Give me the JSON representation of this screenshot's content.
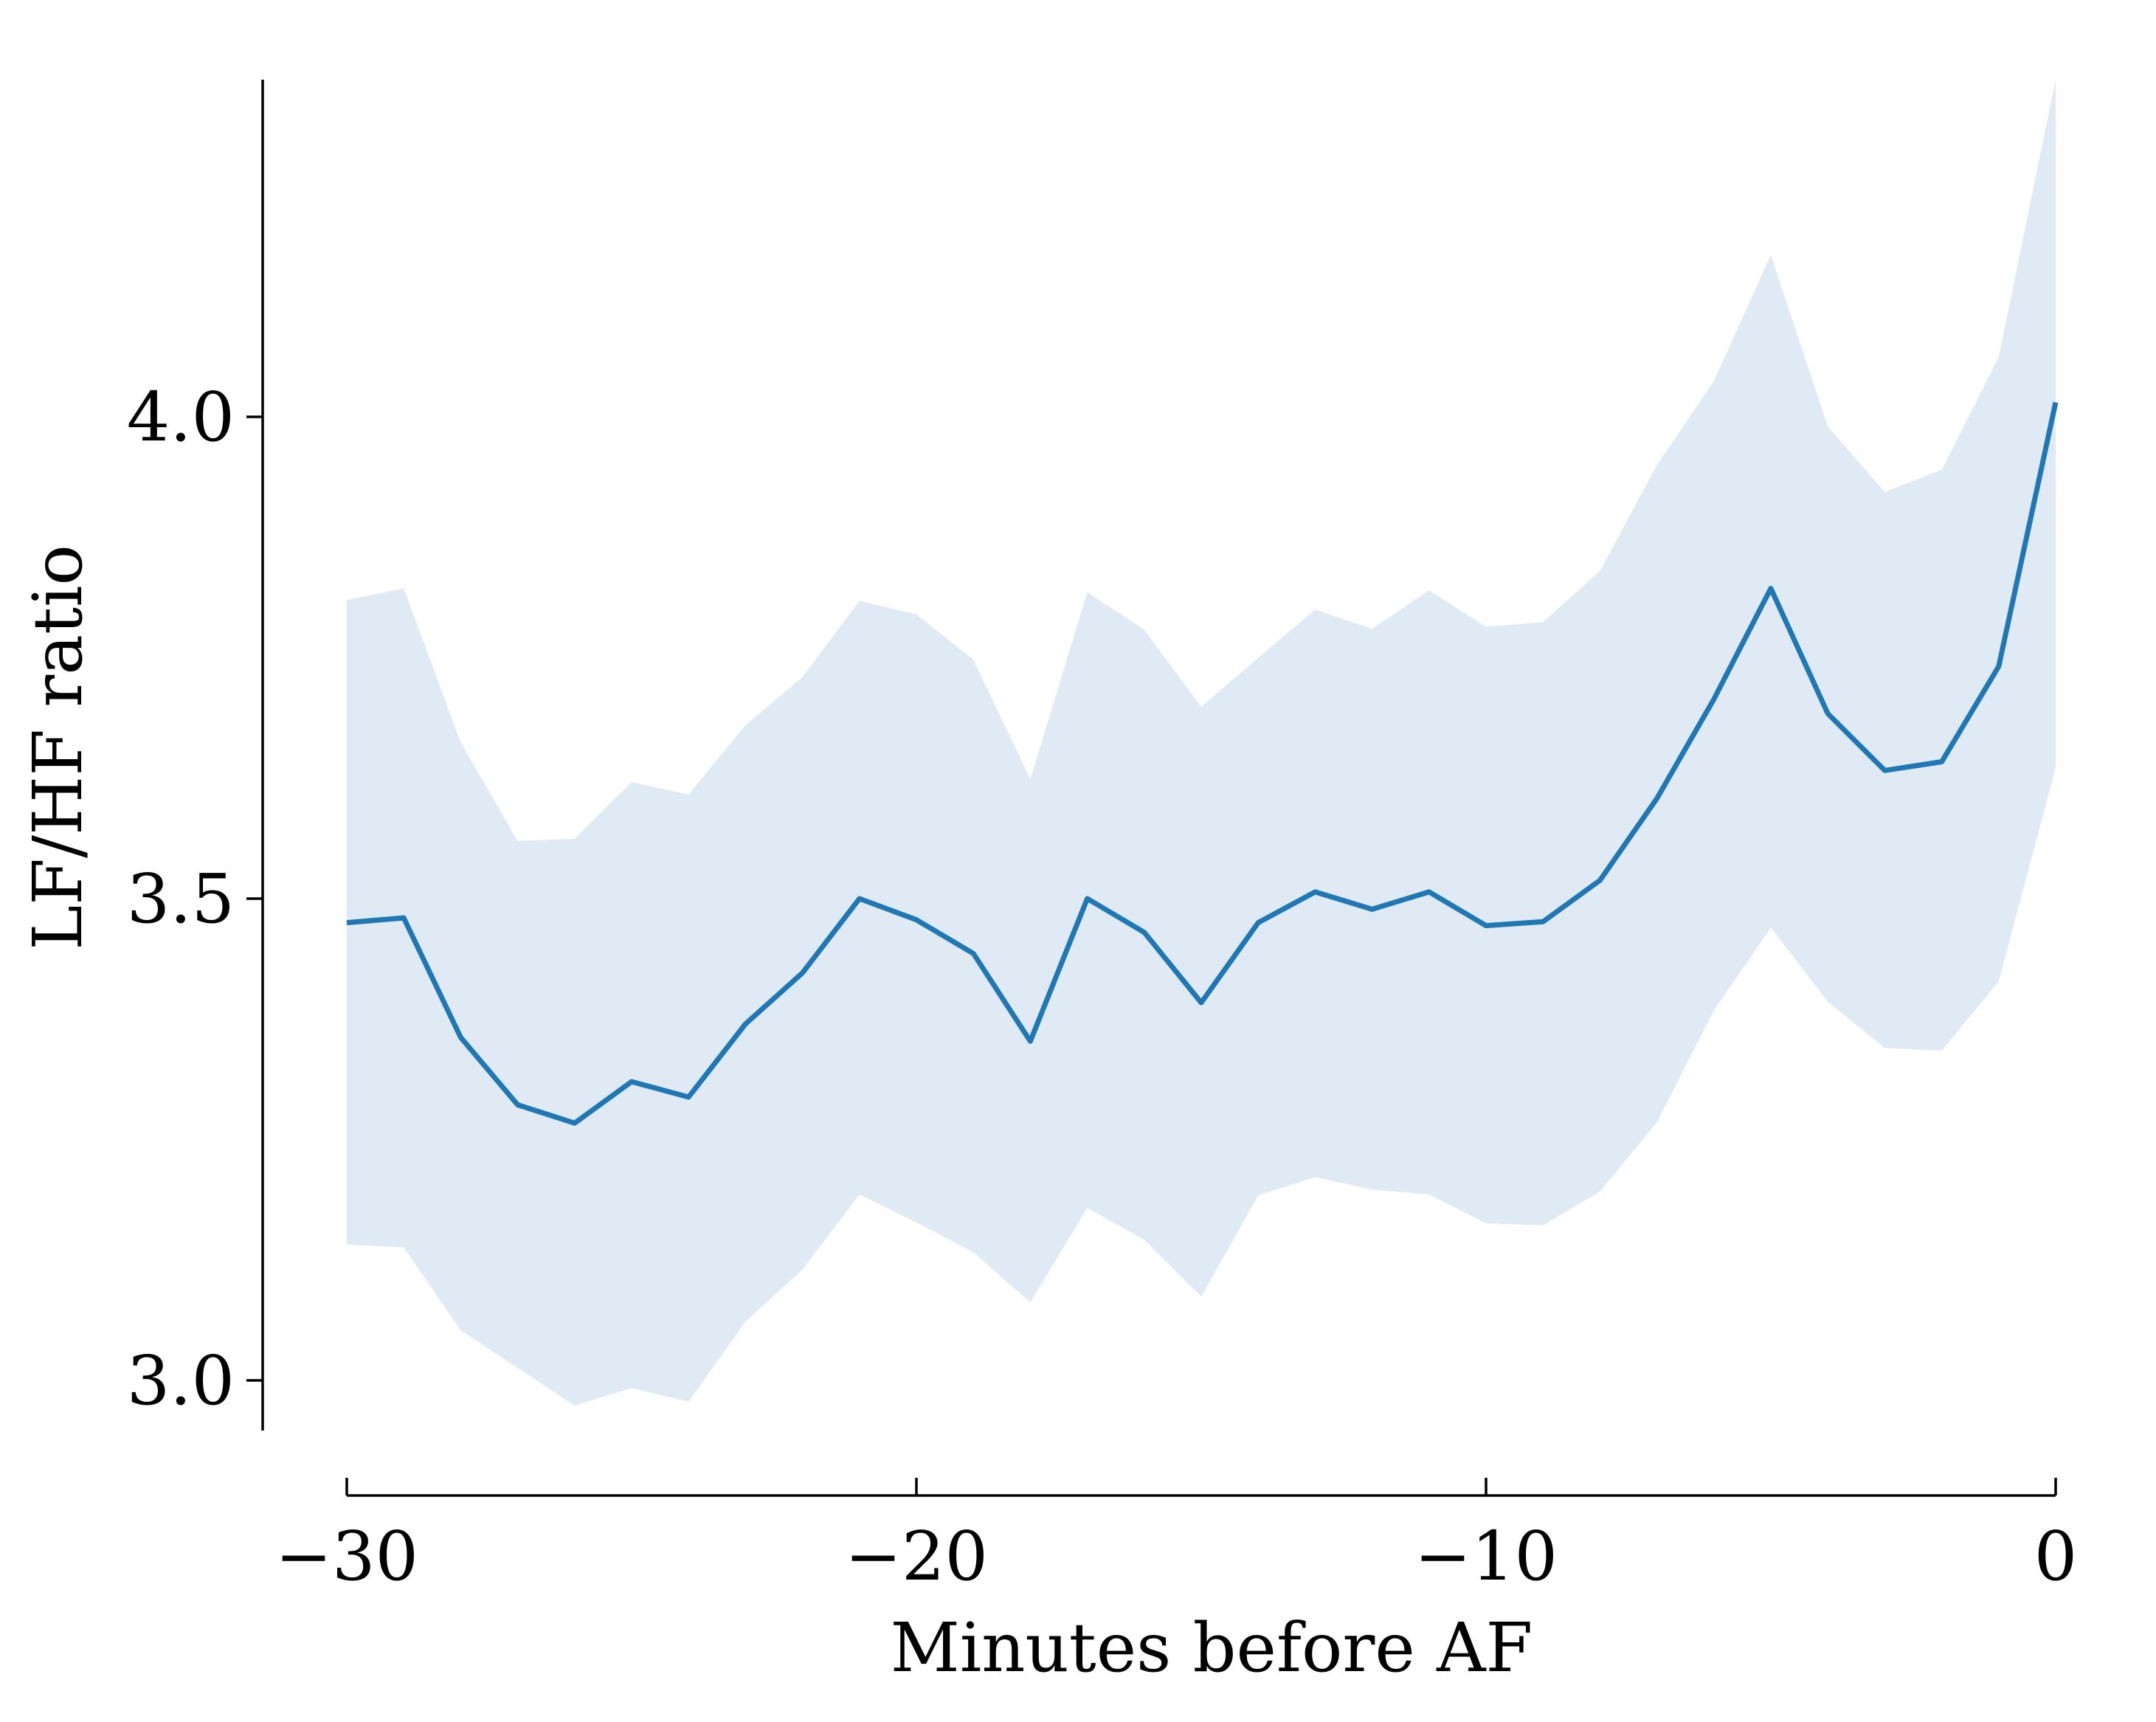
{
  "chart_data": {
    "type": "line",
    "title": "",
    "xlabel": "Minutes before AF",
    "ylabel": "LF/HF ratio",
    "xlim": [
      -30,
      0
    ],
    "ylim": [
      2.95,
      4.35
    ],
    "x_ticks": [
      -30,
      -20,
      -10,
      0
    ],
    "x_tick_labels": [
      "−30",
      "−20",
      "−10",
      "0"
    ],
    "y_ticks": [
      3.0,
      3.5,
      4.0
    ],
    "y_tick_labels": [
      "3.0",
      "3.5",
      "4.0"
    ],
    "grid": false,
    "legend": "none",
    "series": [
      {
        "color": "#1f77b4",
        "band_color": "#dfeaf4",
        "x": [
          -30,
          -29,
          -28,
          -27,
          -26,
          -25,
          -24,
          -23,
          -22,
          -21,
          -20,
          -19,
          -18,
          -17,
          -16,
          -15,
          -14,
          -13,
          -12,
          -11,
          -10,
          -9,
          -8,
          -7,
          -6,
          -5,
          -4,
          -3,
          -2,
          -1,
          0
        ],
        "y": [
          3.475,
          3.48,
          3.356,
          3.286,
          3.267,
          3.31,
          3.294,
          3.37,
          3.423,
          3.5,
          3.478,
          3.443,
          3.352,
          3.5,
          3.465,
          3.392,
          3.475,
          3.507,
          3.489,
          3.507,
          3.472,
          3.476,
          3.519,
          3.604,
          3.707,
          3.822,
          3.692,
          3.633,
          3.642,
          3.741,
          4.015
        ],
        "upper": [
          3.81,
          3.822,
          3.662,
          3.56,
          3.562,
          3.621,
          3.608,
          3.68,
          3.73,
          3.809,
          3.795,
          3.748,
          3.624,
          3.818,
          3.779,
          3.699,
          3.75,
          3.8,
          3.78,
          3.82,
          3.782,
          3.787,
          3.84,
          3.95,
          4.037,
          4.168,
          3.99,
          3.922,
          3.945,
          4.062,
          4.35
        ],
        "lower": [
          3.141,
          3.138,
          3.052,
          3.013,
          2.974,
          2.992,
          2.978,
          3.061,
          3.115,
          3.193,
          3.164,
          3.133,
          3.081,
          3.179,
          3.146,
          3.087,
          3.192,
          3.211,
          3.198,
          3.193,
          3.163,
          3.161,
          3.196,
          3.268,
          3.384,
          3.47,
          3.393,
          3.345,
          3.342,
          3.414,
          3.636
        ]
      }
    ]
  }
}
